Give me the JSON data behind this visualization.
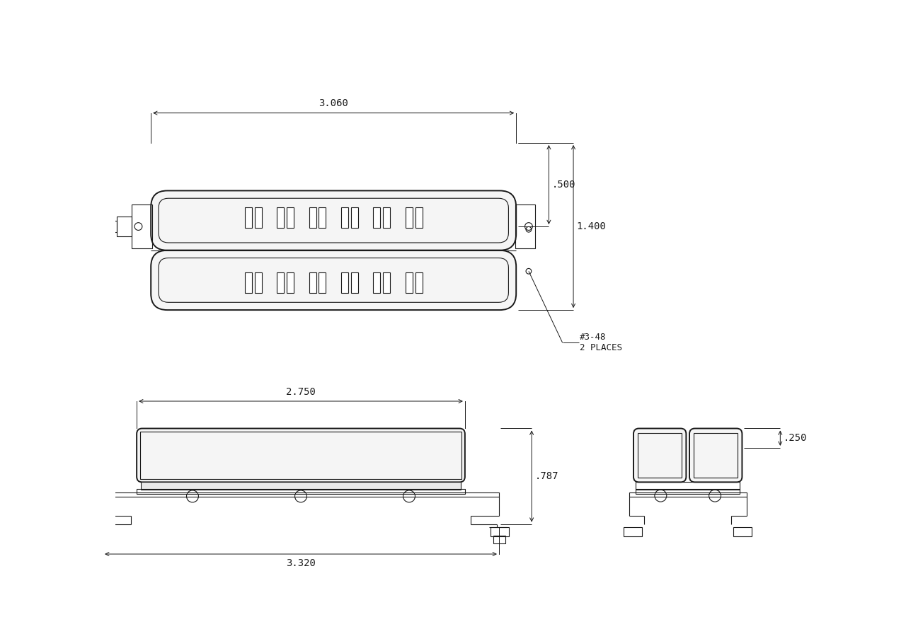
{
  "bg_color": "#ffffff",
  "line_color": "#1a1a1a",
  "dim_color": "#1a1a1a",
  "lw_main": 1.4,
  "lw_thin": 0.8,
  "lw_dim": 0.7,
  "dim_3060": "3.060",
  "dim_500": ".500",
  "dim_1400": "1.400",
  "dim_2750": "2.750",
  "dim_787": ".787",
  "dim_3320": "3.320",
  "dim_250": ".250",
  "screw_label": "#3-48",
  "screw_sublabel": "2 PLACES",
  "n_pole_pairs": 6,
  "fontsize_dim": 10,
  "fontsize_ann": 9
}
